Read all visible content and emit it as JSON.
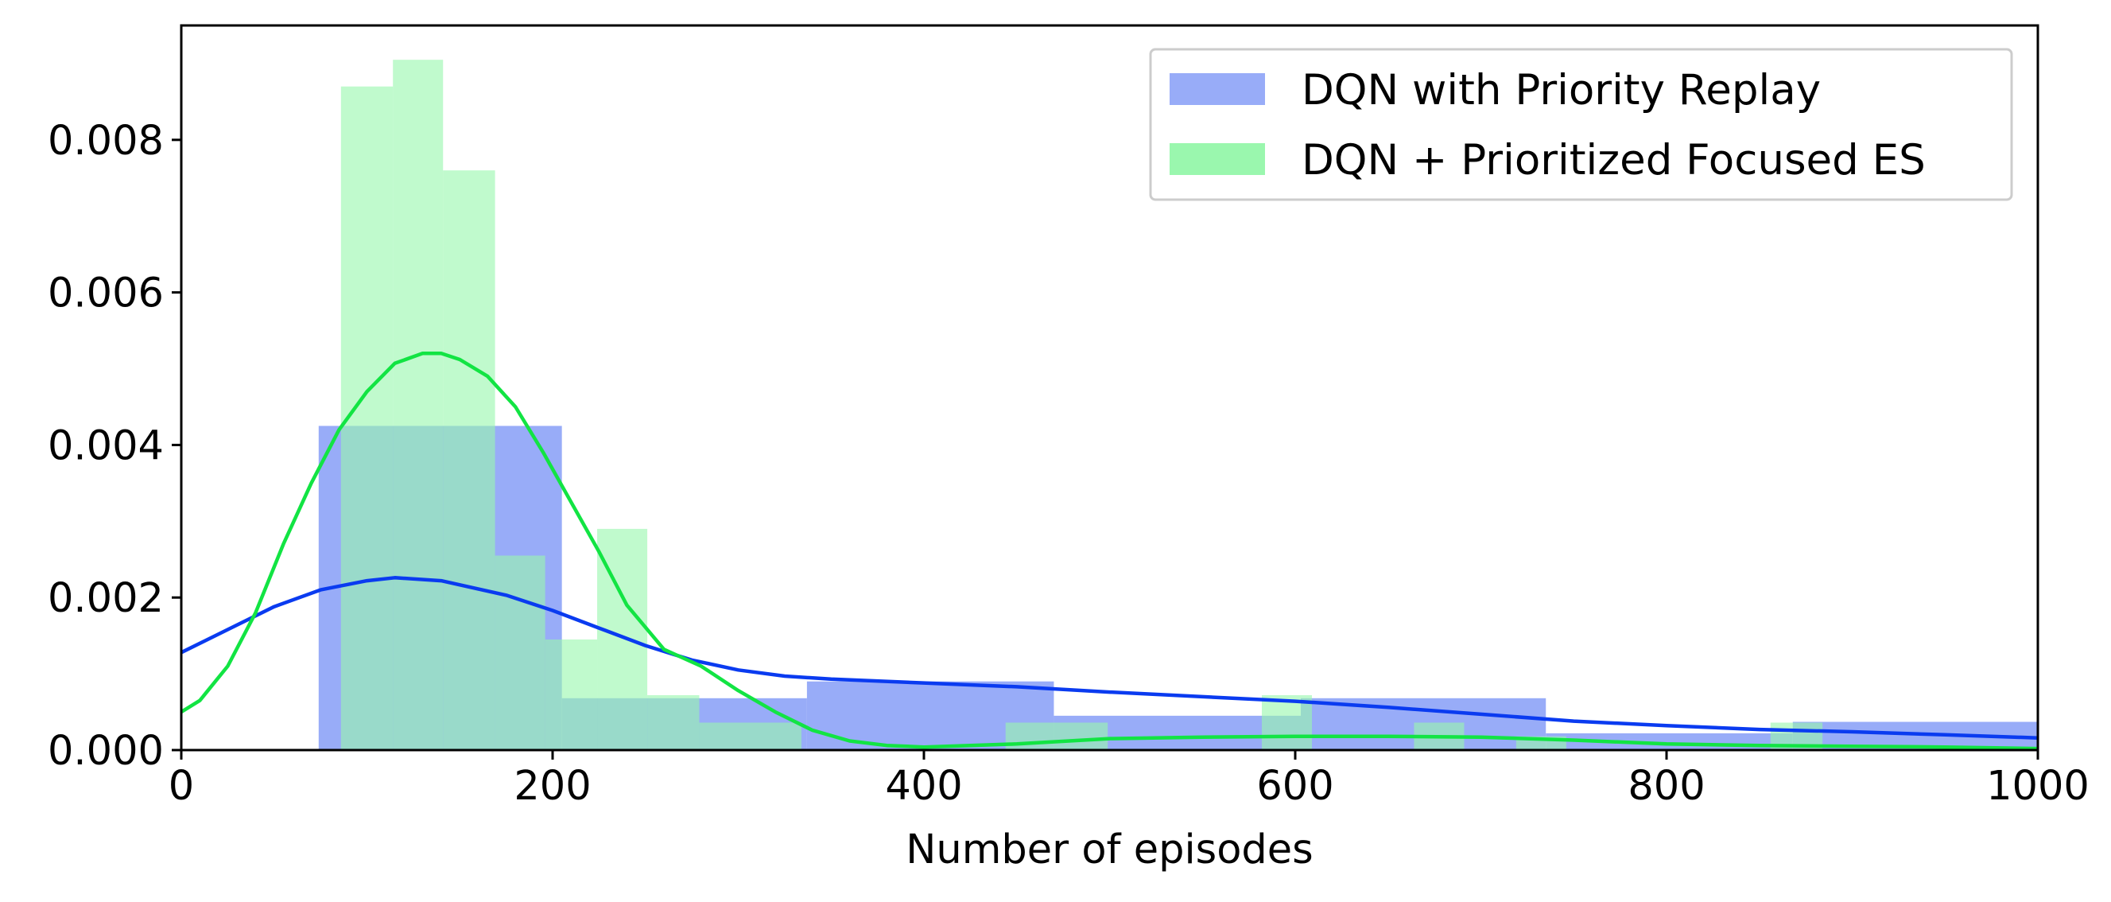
{
  "chart_data": {
    "type": "histogram",
    "xlabel": "Number of episodes",
    "ylabel": "",
    "xlim": [
      0,
      1000
    ],
    "ylim": [
      0,
      0.0095
    ],
    "x_ticks": [
      "0",
      "200",
      "400",
      "600",
      "800",
      "1000"
    ],
    "y_ticks": [
      "0.000",
      "0.002",
      "0.004",
      "0.006",
      "0.008"
    ],
    "grid": false,
    "legend_position": "top-right",
    "series": [
      {
        "name": "DQN with Priority Replay",
        "color": "#98acf8",
        "bins": [
          {
            "x0": 74,
            "x1": 205,
            "density": 0.00425
          },
          {
            "x0": 205,
            "x1": 337,
            "density": 0.00068
          },
          {
            "x0": 337,
            "x1": 470,
            "density": 0.0009
          },
          {
            "x0": 470,
            "x1": 603,
            "density": 0.00045
          },
          {
            "x0": 603,
            "x1": 735,
            "density": 0.00068
          },
          {
            "x0": 735,
            "x1": 868,
            "density": 0.00022
          },
          {
            "x0": 868,
            "x1": 1000,
            "density": 0.00037
          }
        ],
        "kde_color": "#0a3bf0",
        "kde": [
          [
            0,
            0.00128
          ],
          [
            25,
            0.00158
          ],
          [
            50,
            0.00188
          ],
          [
            75,
            0.0021
          ],
          [
            100,
            0.00222
          ],
          [
            115,
            0.00226
          ],
          [
            140,
            0.00222
          ],
          [
            175,
            0.00203
          ],
          [
            200,
            0.00183
          ],
          [
            225,
            0.0016
          ],
          [
            250,
            0.00137
          ],
          [
            275,
            0.00118
          ],
          [
            300,
            0.00105
          ],
          [
            325,
            0.00097
          ],
          [
            350,
            0.00093
          ],
          [
            400,
            0.00088
          ],
          [
            450,
            0.00083
          ],
          [
            500,
            0.00076
          ],
          [
            550,
            0.0007
          ],
          [
            600,
            0.00064
          ],
          [
            650,
            0.00056
          ],
          [
            700,
            0.00047
          ],
          [
            750,
            0.00038
          ],
          [
            800,
            0.00032
          ],
          [
            850,
            0.00027
          ],
          [
            900,
            0.00024
          ],
          [
            950,
            0.0002
          ],
          [
            1000,
            0.00016
          ]
        ]
      },
      {
        "name": "DQN + Prioritized Focused ES",
        "color": "#9af7ae",
        "bins": [
          {
            "x0": 86,
            "x1": 114,
            "density": 0.0087
          },
          {
            "x0": 114,
            "x1": 141,
            "density": 0.00905
          },
          {
            "x0": 141,
            "x1": 169,
            "density": 0.0076
          },
          {
            "x0": 169,
            "x1": 196,
            "density": 0.00255
          },
          {
            "x0": 196,
            "x1": 224,
            "density": 0.00145
          },
          {
            "x0": 224,
            "x1": 251,
            "density": 0.0029
          },
          {
            "x0": 251,
            "x1": 279,
            "density": 0.00072
          },
          {
            "x0": 279,
            "x1": 334,
            "density": 0.00036
          },
          {
            "x0": 444,
            "x1": 499,
            "density": 0.00036
          },
          {
            "x0": 582,
            "x1": 609,
            "density": 0.00072
          },
          {
            "x0": 664,
            "x1": 691,
            "density": 0.00036
          },
          {
            "x0": 719,
            "x1": 746,
            "density": 0.00018
          },
          {
            "x0": 856,
            "x1": 884,
            "density": 0.00036
          }
        ],
        "kde_color": "#12e443",
        "kde": [
          [
            0,
            0.0005
          ],
          [
            10,
            0.00065
          ],
          [
            25,
            0.0011
          ],
          [
            40,
            0.0018
          ],
          [
            55,
            0.0027
          ],
          [
            70,
            0.0035
          ],
          [
            85,
            0.0042
          ],
          [
            100,
            0.0047
          ],
          [
            115,
            0.00507
          ],
          [
            130,
            0.0052
          ],
          [
            140,
            0.0052
          ],
          [
            150,
            0.00512
          ],
          [
            165,
            0.0049
          ],
          [
            180,
            0.0045
          ],
          [
            195,
            0.0039
          ],
          [
            210,
            0.00325
          ],
          [
            225,
            0.0026
          ],
          [
            240,
            0.0019
          ],
          [
            260,
            0.00132
          ],
          [
            280,
            0.0011
          ],
          [
            300,
            0.00078
          ],
          [
            320,
            0.0005
          ],
          [
            340,
            0.00026
          ],
          [
            360,
            0.00012
          ],
          [
            380,
            6e-05
          ],
          [
            400,
            4e-05
          ],
          [
            450,
            8e-05
          ],
          [
            500,
            0.00015
          ],
          [
            550,
            0.00017
          ],
          [
            600,
            0.00018
          ],
          [
            650,
            0.00018
          ],
          [
            700,
            0.00017
          ],
          [
            750,
            0.00013
          ],
          [
            800,
            8e-05
          ],
          [
            850,
            6e-05
          ],
          [
            900,
            5e-05
          ],
          [
            950,
            4e-05
          ],
          [
            1000,
            2e-05
          ]
        ]
      }
    ]
  }
}
